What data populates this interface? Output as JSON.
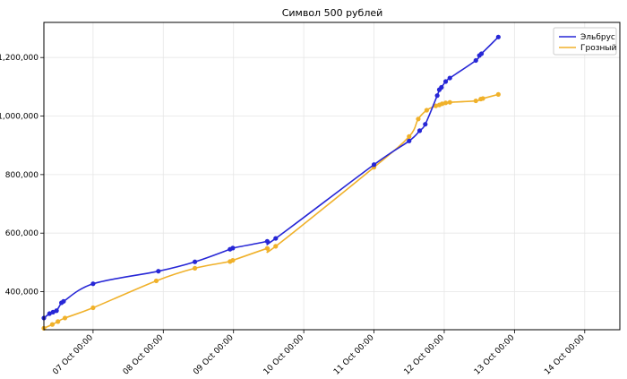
{
  "chart_data": {
    "type": "line",
    "title": "Символ 500 рублей",
    "xlabel": "",
    "ylabel": "",
    "x_tick_labels": [
      "07 Oct 00:00",
      "08 Oct 00:00",
      "09 Oct 00:00",
      "10 Oct 00:00",
      "11 Oct 00:00",
      "12 Oct 00:00",
      "13 Oct 00:00",
      "14 Oct 00:00"
    ],
    "x_tick_days": [
      7,
      8,
      9,
      10,
      11,
      12,
      13,
      14
    ],
    "y_ticks": [
      400000,
      600000,
      800000,
      1000000,
      1200000
    ],
    "y_tick_labels": [
      "400,000",
      "600,000",
      "800,000",
      "1,000,000",
      "1,200,000"
    ],
    "xlim_days": [
      6.3,
      14.5
    ],
    "ylim": [
      270000,
      1320000
    ],
    "grid": true,
    "legend_position": "top-right",
    "series": [
      {
        "name": "Эльбрус",
        "color": "#2727d6",
        "points": [
          [
            6.3,
            310000
          ],
          [
            6.38,
            325000
          ],
          [
            6.43,
            330000
          ],
          [
            6.48,
            335000
          ],
          [
            6.55,
            362000
          ],
          [
            6.58,
            367000
          ],
          [
            7.0,
            427000
          ],
          [
            7.93,
            470000
          ],
          [
            8.45,
            502000
          ],
          [
            8.95,
            545000
          ],
          [
            8.99,
            549000
          ],
          [
            9.48,
            572000
          ],
          [
            9.6,
            582000
          ],
          [
            11.0,
            834000
          ],
          [
            11.5,
            915000
          ],
          [
            11.65,
            950000
          ],
          [
            11.73,
            972000
          ],
          [
            11.9,
            1070000
          ],
          [
            11.93,
            1090000
          ],
          [
            11.96,
            1098000
          ],
          [
            12.02,
            1118000
          ],
          [
            12.08,
            1130000
          ],
          [
            12.45,
            1190000
          ],
          [
            12.5,
            1207000
          ],
          [
            12.53,
            1213000
          ],
          [
            12.77,
            1270000
          ]
        ]
      },
      {
        "name": "Грозный",
        "color": "#f0b12a",
        "points": [
          [
            6.3,
            275000
          ],
          [
            6.42,
            288000
          ],
          [
            6.5,
            298000
          ],
          [
            6.6,
            310000
          ],
          [
            7.0,
            345000
          ],
          [
            7.9,
            437000
          ],
          [
            8.45,
            480000
          ],
          [
            8.95,
            503000
          ],
          [
            8.99,
            507000
          ],
          [
            9.48,
            548000
          ],
          [
            9.6,
            555000
          ],
          [
            11.0,
            825000
          ],
          [
            11.5,
            930000
          ],
          [
            11.63,
            990000
          ],
          [
            11.75,
            1020000
          ],
          [
            11.88,
            1035000
          ],
          [
            11.93,
            1038000
          ],
          [
            11.97,
            1042000
          ],
          [
            12.02,
            1045000
          ],
          [
            12.08,
            1047000
          ],
          [
            12.45,
            1052000
          ],
          [
            12.52,
            1058000
          ],
          [
            12.55,
            1060000
          ],
          [
            12.77,
            1074000
          ]
        ]
      }
    ]
  }
}
